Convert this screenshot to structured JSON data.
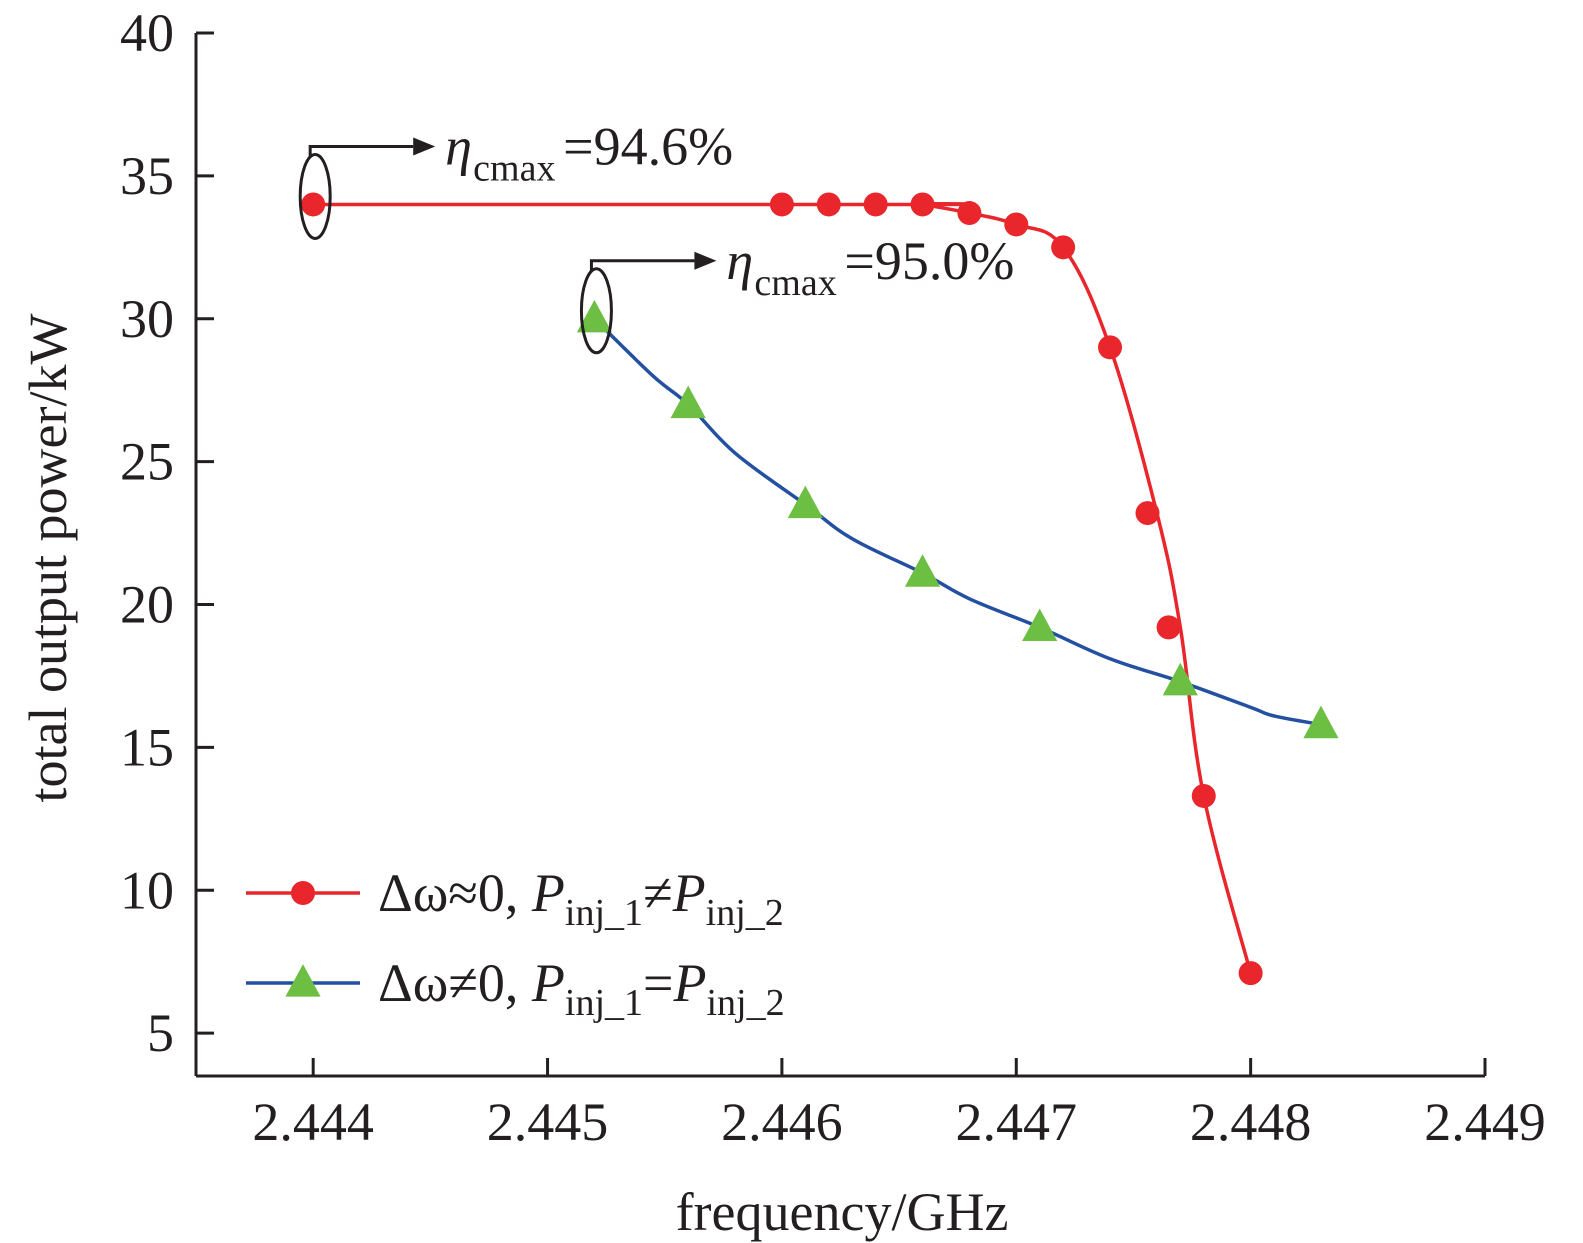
{
  "chart_data": {
    "type": "line",
    "xlabel": "frequency/GHz",
    "ylabel": "total output power/kW",
    "xlim": [
      2.4435,
      2.449
    ],
    "ylim": [
      3.5,
      40
    ],
    "x_ticks": [
      "2.444",
      "2.445",
      "2.446",
      "2.447",
      "2.448",
      "2.449"
    ],
    "y_ticks": [
      "5",
      "10",
      "15",
      "20",
      "25",
      "30",
      "35",
      "40"
    ],
    "x_tick_values": [
      2.444,
      2.445,
      2.446,
      2.447,
      2.448,
      2.449
    ],
    "y_tick_values": [
      5,
      10,
      15,
      20,
      25,
      30,
      35,
      40
    ],
    "grid": false,
    "legend_position": "bottom-left",
    "series": [
      {
        "legend_main": "Δω≈0, ",
        "legend_p1": "P",
        "legend_sub1": "inj_1",
        "legend_op": "≠",
        "legend_p2": "P",
        "legend_sub2": "inj_2",
        "color": "#e8262b",
        "marker": "circle",
        "x": [
          2.444,
          2.4466,
          2.4466,
          2.4468,
          2.447,
          2.4472,
          2.4474,
          2.4476,
          2.4477,
          2.4478,
          2.448
        ],
        "y": [
          34.0,
          34.0,
          34.0,
          33.7,
          33.3,
          32.5,
          29.0,
          23.2,
          19.2,
          13.3,
          7.1
        ],
        "marker_x": [
          2.444,
          2.446,
          2.4462,
          2.4464,
          2.4466,
          2.4468,
          2.447,
          2.4472,
          2.4474,
          2.44756,
          2.44765,
          2.4478,
          2.448
        ],
        "marker_y": [
          34.0,
          34.0,
          34.0,
          34.0,
          34.0,
          33.7,
          33.3,
          32.5,
          29.0,
          23.2,
          19.2,
          13.3,
          7.1
        ]
      },
      {
        "legend_main": "Δω≠0, ",
        "legend_p1": "P",
        "legend_sub1": "inj_1",
        "legend_op": "=",
        "legend_p2": "P",
        "legend_sub2": "inj_2",
        "color": "#2350a0",
        "marker": "triangle",
        "marker_color": "#6cbf43",
        "x": [
          2.4452,
          2.44545,
          2.4456,
          2.4458,
          2.4461,
          2.4463,
          2.4466,
          2.4468,
          2.4471,
          2.4474,
          2.4477,
          2.448,
          2.4481,
          2.4483
        ],
        "y": [
          30.0,
          28.0,
          27.0,
          25.3,
          23.5,
          22.3,
          21.1,
          20.2,
          19.2,
          18.1,
          17.3,
          16.4,
          16.1,
          15.8
        ],
        "marker_x": [
          2.4452,
          2.4456,
          2.4461,
          2.4466,
          2.4471,
          2.4477,
          2.4483
        ],
        "marker_y": [
          30.0,
          27.0,
          23.5,
          21.1,
          19.2,
          17.3,
          15.8
        ]
      }
    ],
    "annotations": [
      {
        "symbol": "η",
        "sub": "cmax",
        "value": "=94.6%",
        "target_x": 2.444,
        "target_y": 34.0
      },
      {
        "symbol": "η",
        "sub": "cmax",
        "value": "=95.0%",
        "target_x": 2.4452,
        "target_y": 30.0
      }
    ]
  }
}
